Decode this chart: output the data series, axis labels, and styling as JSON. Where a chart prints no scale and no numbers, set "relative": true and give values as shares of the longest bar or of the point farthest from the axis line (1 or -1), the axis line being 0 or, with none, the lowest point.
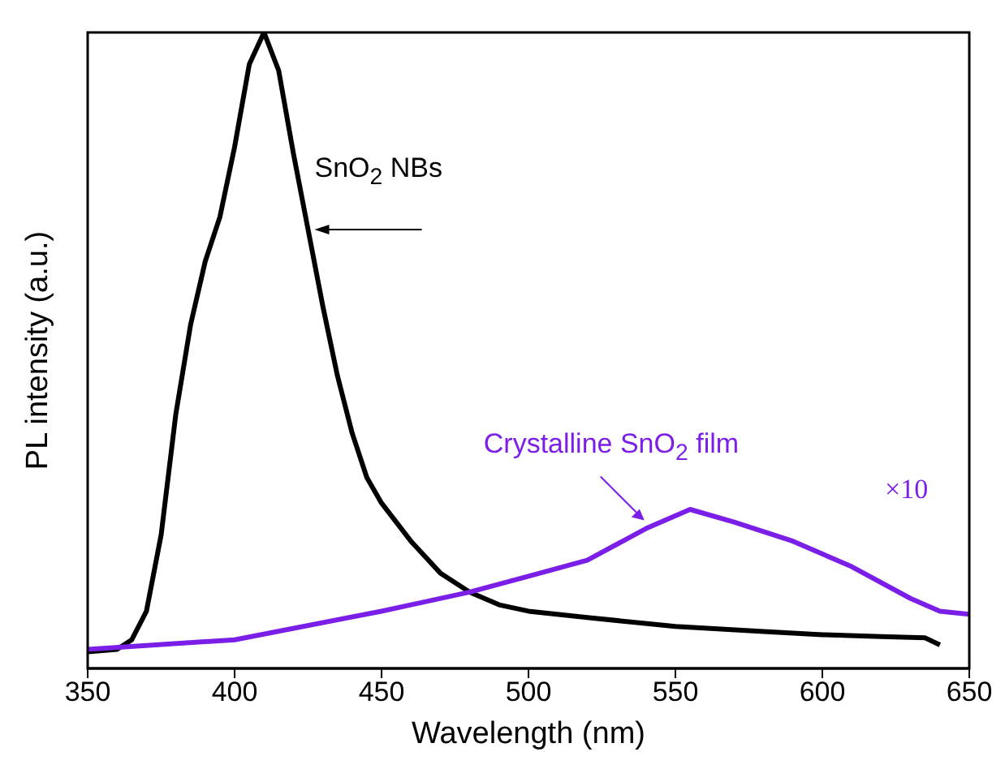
{
  "chart_data": {
    "type": "line",
    "relative": true,
    "xlabel": "Wavelength (nm)",
    "ylabel": "PL intensity (a.u.)",
    "xlim": [
      350,
      650
    ],
    "xticks": [
      350,
      400,
      450,
      500,
      550,
      600,
      650
    ],
    "tick_labels": "x",
    "marker": "none",
    "line_style": "solid",
    "annotations": [
      "×10"
    ],
    "series": [
      {
        "name": "SnO$_{2}$ NBs",
        "color": "#000000",
        "x": [
          350,
          360,
          365,
          370,
          375,
          380,
          385,
          390,
          395,
          400,
          405,
          410,
          415,
          420,
          425,
          430,
          435,
          440,
          445,
          450,
          460,
          470,
          480,
          490,
          500,
          520,
          550,
          580,
          600,
          620,
          635,
          640
        ],
        "values": [
          0.026,
          0.03,
          0.045,
          0.09,
          0.21,
          0.4,
          0.54,
          0.64,
          0.71,
          0.82,
          0.95,
          1,
          0.94,
          0.81,
          0.69,
          0.57,
          0.46,
          0.37,
          0.3,
          0.26,
          0.2,
          0.15,
          0.12,
          0.1,
          0.09,
          0.08,
          0.066,
          0.058,
          0.053,
          0.05,
          0.048,
          0.037
        ]
      },
      {
        "name": "Crystalline SnO$_{2}$ film",
        "color": "#7b1fe8",
        "x": [
          350,
          400,
          450,
          480,
          500,
          520,
          540,
          555,
          570,
          590,
          610,
          630,
          640,
          650
        ],
        "values": [
          0.03,
          0.045,
          0.09,
          0.12,
          0.145,
          0.17,
          0.22,
          0.25,
          0.23,
          0.2,
          0.16,
          0.11,
          0.09,
          0.085
        ]
      }
    ]
  }
}
